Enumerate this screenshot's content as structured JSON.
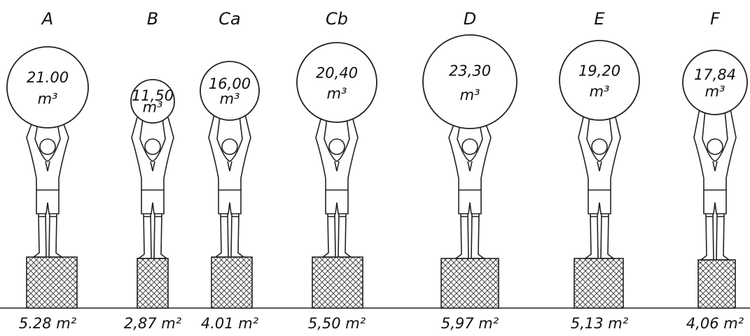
{
  "figures": [
    {
      "label": "A",
      "volume": "21.00",
      "area": "5.28"
    },
    {
      "label": "B",
      "volume": "11,50",
      "area": "2,87"
    },
    {
      "label": "Ca",
      "volume": "16,00",
      "area": "4.01"
    },
    {
      "label": "Cb",
      "volume": "20,40",
      "area": "5,50"
    },
    {
      "label": "D",
      "volume": "23,30",
      "area": "5,97"
    },
    {
      "label": "E",
      "volume": "19,20",
      "area": "5,13"
    },
    {
      "label": "F",
      "volume": "17,84",
      "area": "4,06"
    }
  ],
  "volume_unit": "m³",
  "area_unit": "m²"
}
